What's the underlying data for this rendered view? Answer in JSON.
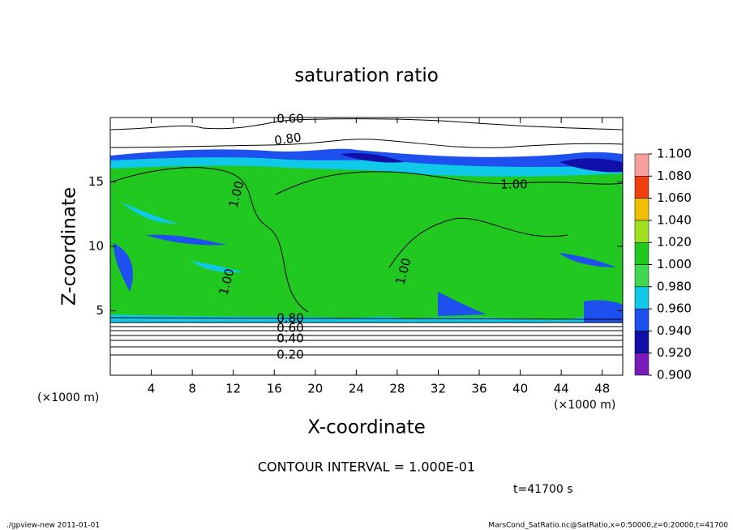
{
  "chart_data": {
    "type": "contour",
    "title": "saturation ratio",
    "xlabel": "X-coordinate",
    "ylabel": "Z-coordinate",
    "xunit_left": "(×1000 m)",
    "xunit_right": "(×1000 m)",
    "xlim": [
      0,
      50
    ],
    "xticks": [
      4,
      8,
      12,
      16,
      20,
      24,
      28,
      32,
      36,
      40,
      44,
      48
    ],
    "ylim": [
      0,
      20
    ],
    "yticks": [
      5,
      10,
      15
    ],
    "contour_labels": [
      {
        "value": 0.6,
        "label": "0.60"
      },
      {
        "value": 0.8,
        "label": "0.80"
      },
      {
        "value": 1,
        "label": "1.00"
      },
      {
        "value": 1,
        "label": "1.00"
      },
      {
        "value": 1,
        "label": "1.00"
      },
      {
        "value": 1,
        "label": "1.00"
      },
      {
        "value": 0.8,
        "label": "0.80"
      },
      {
        "value": 0.6,
        "label": "0.60"
      },
      {
        "value": 0.4,
        "label": "0.40"
      },
      {
        "value": 0.2,
        "label": "0.20"
      }
    ],
    "colorbar": {
      "ticks": [
        {
          "value": 0.9,
          "label": "0.900"
        },
        {
          "value": 0.92,
          "label": "0.920"
        },
        {
          "value": 0.94,
          "label": "0.940"
        },
        {
          "value": 0.96,
          "label": "0.960"
        },
        {
          "value": 0.98,
          "label": "0.980"
        },
        {
          "value": 1,
          "label": "1.000"
        },
        {
          "value": 1.02,
          "label": "1.020"
        },
        {
          "value": 1.04,
          "label": "1.040"
        },
        {
          "value": 1.06,
          "label": "1.060"
        },
        {
          "value": 1.08,
          "label": "1.080"
        },
        {
          "value": 1.1,
          "label": "1.100"
        }
      ],
      "colors": [
        "#7a1ab8",
        "#1010a8",
        "#1e50f0",
        "#10c8e8",
        "#40d850",
        "#20c820",
        "#a0e020",
        "#f0c000",
        "#f04010",
        "#f8a0a0"
      ]
    },
    "contour_interval": "CONTOUR INTERVAL = 1.000E-01",
    "time": "t=41700 s",
    "footer_left": "./gpview-new  2011-01-01",
    "footer_right": "MarsCond_SatRatio.nc@SatRatio,x=0:50000,z=0:20000,t=41700"
  }
}
